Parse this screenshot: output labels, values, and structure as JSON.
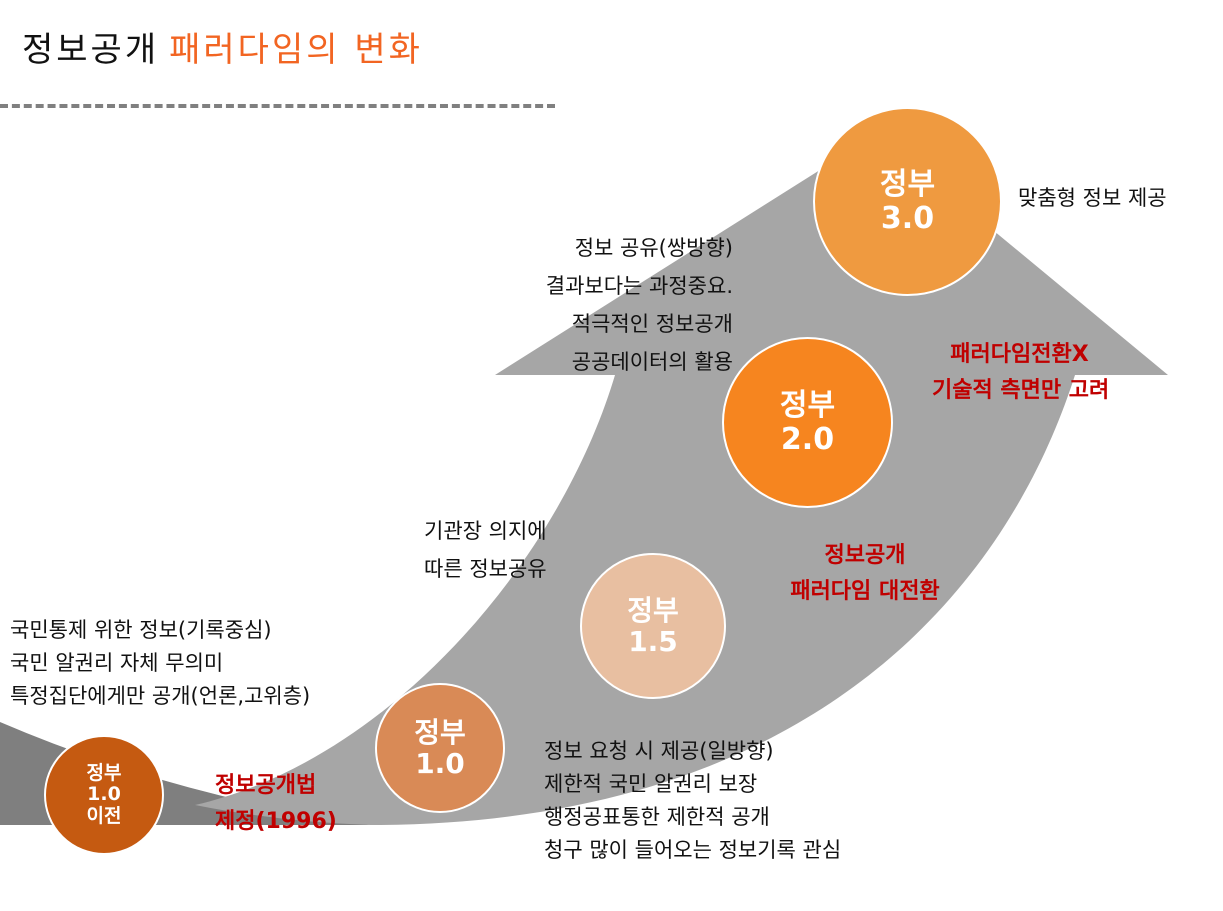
{
  "title": {
    "part1": "정보공개",
    "part2": "패러다임의 변화",
    "part2_color": "#f26522"
  },
  "stages": [
    {
      "line1": "정부",
      "line2": "1.0",
      "line3": "이전",
      "color": "#c55a11"
    },
    {
      "line1": "정부",
      "line2": "1.0",
      "color": "#d98a56"
    },
    {
      "line1": "정부",
      "line2": "1.5",
      "color": "#e8bfa1"
    },
    {
      "line1": "정부",
      "line2": "2.0",
      "color": "#f6851f"
    },
    {
      "line1": "정부",
      "line2": "3.0",
      "color": "#ef9a40"
    }
  ],
  "notes": {
    "pre10": [
      "국민통제 위한 정보(기록중심)",
      "국민 알권리 자체  무의미",
      "특정집단에게만 공개(언론,고위층)"
    ],
    "gov10": [
      "정보 요청 시 제공(일방향)",
      "제한적 국민 알권리 보장",
      "행정공표통한 제한적 공개",
      "청구 많이 들어오는 정보기록 관심"
    ],
    "gov15": [
      "기관장 의지에",
      "따른 정보공유"
    ],
    "gov20": [
      "정보 공유(쌍방향)",
      "결과보다는 과정중요.",
      "적극적인 정보공개",
      "공공데이터의 활용"
    ],
    "gov30": [
      "맞춤형 정보 제공"
    ]
  },
  "highlights": {
    "law": [
      "정보공개법",
      "제정(1996)"
    ],
    "shift": [
      "정보공개",
      "패러다임 대전환"
    ],
    "noshift": [
      "패러다임전환X",
      "기술적 측면만 고려"
    ],
    "color": "#c00000"
  },
  "arrow_colors": {
    "dark": "#7f7f7f",
    "light": "#a6a6a6"
  }
}
